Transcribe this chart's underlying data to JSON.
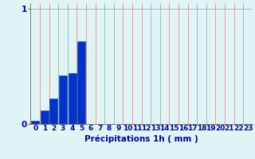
{
  "categories": [
    0,
    1,
    2,
    3,
    4,
    5,
    6,
    7,
    8,
    9,
    10,
    11,
    12,
    13,
    14,
    15,
    16,
    17,
    18,
    19,
    20,
    21,
    22,
    23
  ],
  "values": [
    0.03,
    0.12,
    0.22,
    0.42,
    0.44,
    0.72,
    0,
    0,
    0,
    0,
    0,
    0,
    0,
    0,
    0,
    0,
    0,
    0,
    0,
    0,
    0,
    0,
    0,
    0
  ],
  "bar_color": "#0033cc",
  "bar_edge_color": "#003399",
  "background_color": "#dff4f4",
  "grid_color_x": "#cc8888",
  "grid_color_y": "#cc8888",
  "axis_color": "#666666",
  "text_color": "#0000bb",
  "xlabel": "Précipitations 1h ( mm )",
  "ylim": [
    0,
    1.05
  ],
  "yticks": [
    0,
    1
  ],
  "xlim": [
    -0.5,
    23.5
  ],
  "xlabel_fontsize": 7.5,
  "tick_fontsize": 6.5
}
